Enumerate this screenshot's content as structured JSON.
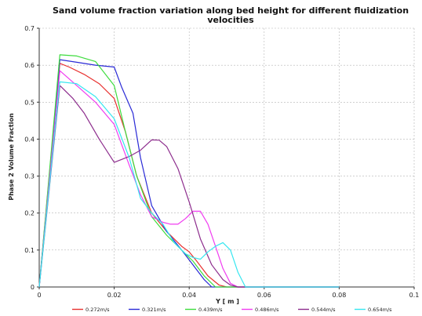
{
  "chart_data": {
    "type": "line",
    "title": "Sand volume fraction variation along bed height for different fluidization velocities",
    "title_lines": [
      "Sand volume fraction variation along bed height for different fluidization",
      "velocities"
    ],
    "xlabel": "Y [ m ]",
    "ylabel": "Phase 2 Volume Fraction",
    "xlim": [
      0,
      0.1
    ],
    "ylim": [
      0,
      0.7
    ],
    "xticks": [
      0,
      0.02,
      0.04,
      0.06,
      0.08,
      0.1
    ],
    "xtick_labels": [
      "0",
      "0.02",
      "0.04",
      "0.06",
      "0.08",
      "0.1"
    ],
    "yticks": [
      0,
      0.1,
      0.2,
      0.3,
      0.4,
      0.5,
      0.6,
      0.7
    ],
    "ytick_labels": [
      "0",
      "0.1",
      "0.2",
      "0.3",
      "0.4",
      "0.5",
      "0.6",
      "0.7"
    ],
    "grid": true,
    "legend_position": "bottom",
    "series": [
      {
        "name": "0.272m/s",
        "color": "#e8312f",
        "x": [
          0,
          0.0055,
          0.008,
          0.012,
          0.016,
          0.02,
          0.023,
          0.026,
          0.03,
          0.034,
          0.038,
          0.04,
          0.042,
          0.045,
          0.048,
          0.05,
          0.052,
          0.08
        ],
        "y": [
          0,
          0.605,
          0.595,
          0.575,
          0.55,
          0.51,
          0.42,
          0.3,
          0.2,
          0.15,
          0.11,
          0.095,
          0.07,
          0.03,
          0.005,
          0,
          0,
          0
        ]
      },
      {
        "name": "0.321m/s",
        "color": "#2a2ad6",
        "x": [
          0,
          0.0055,
          0.01,
          0.015,
          0.02,
          0.022,
          0.025,
          0.027,
          0.03,
          0.034,
          0.038,
          0.041,
          0.044,
          0.046,
          0.08
        ],
        "y": [
          0,
          0.615,
          0.608,
          0.6,
          0.595,
          0.54,
          0.47,
          0.35,
          0.22,
          0.15,
          0.1,
          0.06,
          0.02,
          0,
          0
        ]
      },
      {
        "name": "0.439m/s",
        "color": "#3ddc3d",
        "x": [
          0,
          0.0055,
          0.01,
          0.015,
          0.02,
          0.023,
          0.026,
          0.03,
          0.034,
          0.038,
          0.041,
          0.044,
          0.047,
          0.08
        ],
        "y": [
          0,
          0.628,
          0.625,
          0.61,
          0.545,
          0.42,
          0.3,
          0.19,
          0.14,
          0.1,
          0.07,
          0.03,
          0,
          0
        ]
      },
      {
        "name": "0.486m/s",
        "color": "#f03cf0",
        "x": [
          0,
          0.0055,
          0.01,
          0.015,
          0.02,
          0.024,
          0.027,
          0.03,
          0.033,
          0.035,
          0.037,
          0.039,
          0.041,
          0.043,
          0.045,
          0.047,
          0.049,
          0.051,
          0.053,
          0.08
        ],
        "y": [
          0,
          0.585,
          0.545,
          0.5,
          0.44,
          0.33,
          0.25,
          0.19,
          0.175,
          0.17,
          0.17,
          0.185,
          0.205,
          0.205,
          0.17,
          0.11,
          0.05,
          0.01,
          0,
          0
        ]
      },
      {
        "name": "0.544m/s",
        "color": "#8d2d8d",
        "x": [
          0,
          0.0055,
          0.009,
          0.012,
          0.016,
          0.02,
          0.024,
          0.027,
          0.03,
          0.032,
          0.034,
          0.037,
          0.04,
          0.043,
          0.046,
          0.049,
          0.051,
          0.053,
          0.08
        ],
        "y": [
          0,
          0.545,
          0.51,
          0.47,
          0.4,
          0.337,
          0.353,
          0.37,
          0.398,
          0.397,
          0.38,
          0.32,
          0.23,
          0.13,
          0.06,
          0.02,
          0.005,
          0,
          0
        ]
      },
      {
        "name": "0.654m/s",
        "color": "#36e6f0",
        "x": [
          0,
          0.0055,
          0.01,
          0.015,
          0.02,
          0.024,
          0.027,
          0.03,
          0.033,
          0.036,
          0.039,
          0.041,
          0.043,
          0.045,
          0.047,
          0.049,
          0.051,
          0.053,
          0.055,
          0.08
        ],
        "y": [
          0,
          0.555,
          0.55,
          0.515,
          0.455,
          0.35,
          0.24,
          0.2,
          0.17,
          0.12,
          0.09,
          0.08,
          0.075,
          0.095,
          0.11,
          0.12,
          0.1,
          0.04,
          0,
          0
        ]
      }
    ]
  }
}
